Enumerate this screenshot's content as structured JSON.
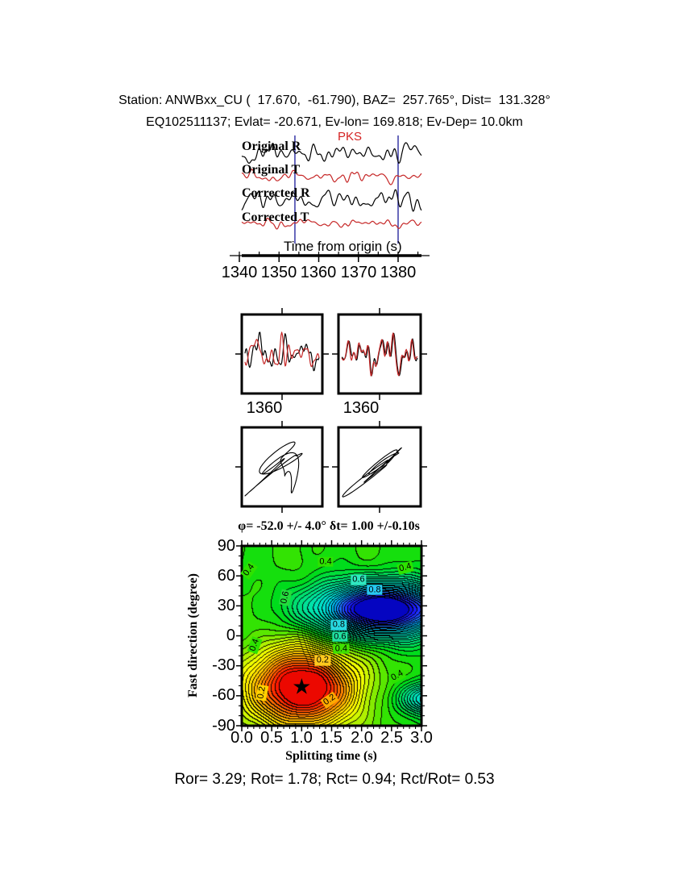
{
  "header": {
    "line1": "Station: ANWBxx_CU (  17.670,  -61.790), BAZ=  257.765°, Dist=  131.328°",
    "line2": "EQ102511137; Evlat= -20.671, Ev-lon= 169.818; Ev-Dep= 10.0km"
  },
  "footer": "Ror= 3.29; Rot= 1.78; Rct= 0.94; Rct/Rot= 0.53",
  "chart_data": {
    "type": "contour",
    "title": "φ= -52.0 +/- 4.0° δt= 1.00 +/-0.10s",
    "xlabel": "Splitting time (s)",
    "ylabel": "Fast direction (degree)",
    "xlim": [
      0.0,
      3.0
    ],
    "ylim": [
      -90,
      90
    ],
    "xticks": [
      "0.0",
      "0.5",
      "1.0",
      "1.5",
      "2.0",
      "2.5",
      "3.0"
    ],
    "yticks": [
      "90",
      "60",
      "30",
      "0",
      "-30",
      "-60",
      "-90"
    ],
    "x_major": 0.5,
    "x_minor": 0.1,
    "y_major": 30,
    "y_minor": 10,
    "best": {
      "x": 1.0,
      "y": -52,
      "phi_deg": -52.0,
      "phi_err_deg": 4.0,
      "dt_s": 1.0,
      "dt_err_s": 0.1,
      "marker": "★"
    },
    "contour_interval": 0.025,
    "field": {
      "base": 0.45,
      "blobs": [
        {
          "x": 2.35,
          "y": 27,
          "sx": 1.1,
          "sy": 26,
          "amp": 0.64
        },
        {
          "x": 1.0,
          "y": -52,
          "sx": 0.9,
          "sy": 40,
          "amp": -0.52
        },
        {
          "x": 3.15,
          "y": -63,
          "sx": 0.5,
          "sy": 16,
          "amp": 0.3
        }
      ],
      "ripples": [
        {
          "amp": 0.012,
          "fx": 4.8,
          "fy": 0.07,
          "px": 0.5,
          "py": 1.0
        },
        {
          "amp": 0.008,
          "fx": 8.9,
          "fy": 0.11,
          "px": 2.1,
          "py": 0.3
        }
      ]
    },
    "palette": [
      [
        0.0,
        "#e60000"
      ],
      [
        0.05,
        "#ff1e00"
      ],
      [
        0.11,
        "#ff6a00"
      ],
      [
        0.175,
        "#ffaa00"
      ],
      [
        0.24,
        "#ffe000"
      ],
      [
        0.3,
        "#fdff00"
      ],
      [
        0.36,
        "#b4f000"
      ],
      [
        0.43,
        "#3ce400"
      ],
      [
        0.48,
        "#00dc14"
      ],
      [
        0.56,
        "#00e06e"
      ],
      [
        0.65,
        "#00e4b4"
      ],
      [
        0.73,
        "#00dcdc"
      ],
      [
        0.8,
        "#00b4f5"
      ],
      [
        0.87,
        "#1e64ff"
      ],
      [
        0.93,
        "#1e1eff"
      ],
      [
        1.0,
        "#0000b4"
      ]
    ],
    "contour_labels": [
      {
        "text": "0.4",
        "x": 0.12,
        "y": 66,
        "rot": -55,
        "bg": "#2ee200"
      },
      {
        "text": "0.4",
        "x": 1.4,
        "y": 74,
        "rot": 0,
        "bg": "#2ee200"
      },
      {
        "text": "0.4",
        "x": 2.73,
        "y": 68,
        "rot": -15,
        "bg": "#2ee200"
      },
      {
        "text": "0.6",
        "x": 0.72,
        "y": 38,
        "rot": -78,
        "bg": "#24dc3c"
      },
      {
        "text": "0.6",
        "x": 1.95,
        "y": 56,
        "rot": 0,
        "bg": "#30e8c0"
      },
      {
        "text": "0.8",
        "x": 2.22,
        "y": 46,
        "rot": 0,
        "bg": "#28c8f0"
      },
      {
        "text": "0.8",
        "x": 1.62,
        "y": 11,
        "rot": 0,
        "bg": "#28d8e0"
      },
      {
        "text": "0.6",
        "x": 1.64,
        "y": -1,
        "rot": 0,
        "bg": "#20e0a0"
      },
      {
        "text": "0.4",
        "x": 1.66,
        "y": -13,
        "rot": 0,
        "bg": "#40e000"
      },
      {
        "text": "0.2",
        "x": 1.35,
        "y": -25,
        "rot": 0,
        "bg": "#ffc81e"
      },
      {
        "text": "0.2",
        "x": 0.33,
        "y": -57,
        "rot": -80,
        "bg": "#ffd200"
      },
      {
        "text": "0.2",
        "x": 1.47,
        "y": -64,
        "rot": -35,
        "bg": "#ffaa00"
      },
      {
        "text": "0.4",
        "x": 2.6,
        "y": -40,
        "rot": -30,
        "bg": "#2ee200"
      },
      {
        "text": "0.4",
        "x": 0.22,
        "y": -9,
        "rot": -70,
        "bg": "#2ee200"
      }
    ],
    "waveforms": {
      "phase": "PKS",
      "axis_label": "Time from origin (s)",
      "ticks": [
        "1340",
        "1350",
        "1360",
        "1370",
        "1380"
      ],
      "time_range": [
        1341,
        1386
      ],
      "window": [
        1354,
        1380
      ],
      "window_color": "#2a2aa0",
      "rows": [
        {
          "label": "Original R",
          "color": "#000000",
          "amp": 13,
          "seed": 11
        },
        {
          "label": "Original T",
          "color": "#c62828",
          "amp": 10,
          "seed": 22
        },
        {
          "label": "Corrected R",
          "color": "#000000",
          "amp": 14,
          "seed": 33
        },
        {
          "label": "Corrected T",
          "color": "#c62828",
          "amp": 7,
          "seed": 44
        }
      ]
    },
    "window_panels": [
      {
        "tick": "1360",
        "seed": 55,
        "seed2": 66,
        "lag": 5,
        "mix": 0.4
      },
      {
        "tick": "1360",
        "seed": 77,
        "seed2": 88,
        "lag": 1,
        "mix": 0.15
      }
    ],
    "particle_motion": [
      {
        "seedx": 101,
        "seedy": 102,
        "corr": 0.15
      },
      {
        "seedx": 103,
        "seedy": 104,
        "corr": 0.8
      }
    ]
  }
}
